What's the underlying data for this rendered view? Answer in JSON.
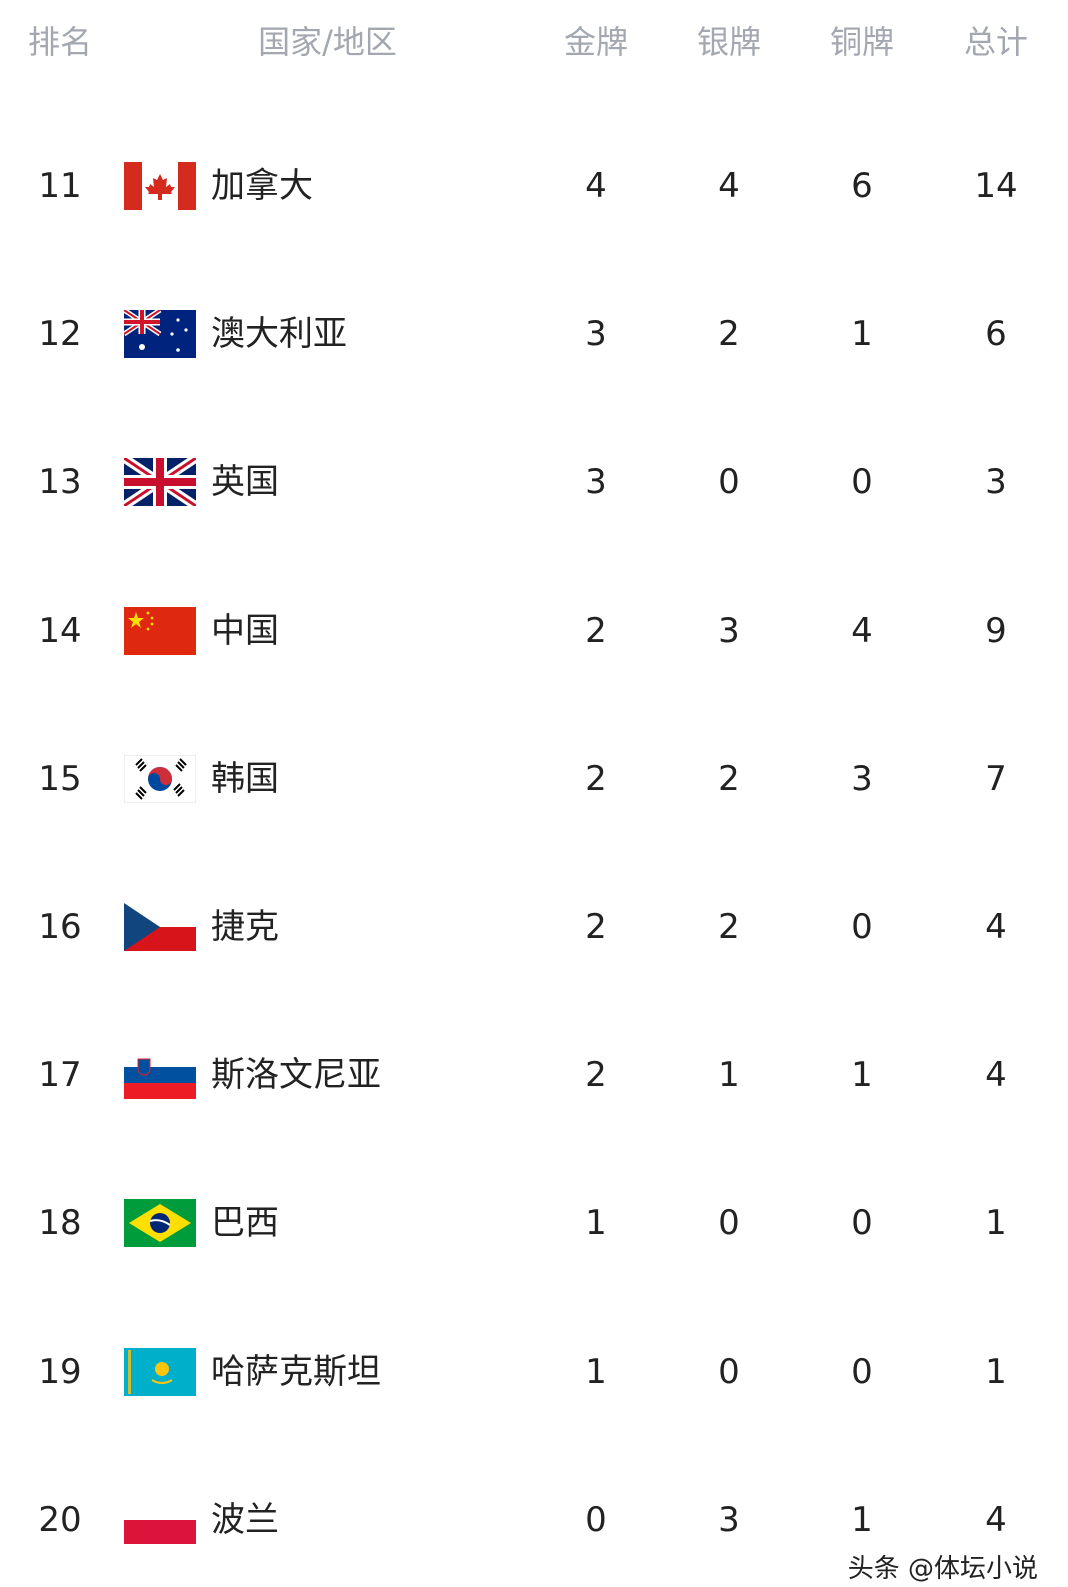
{
  "header": {
    "rank": "排名",
    "country": "国家/地区",
    "gold": "金牌",
    "silver": "银牌",
    "bronze": "铜牌",
    "total": "总计"
  },
  "rows": [
    {
      "rank": "11",
      "country": "加拿大",
      "flag": "canada",
      "gold": "4",
      "silver": "4",
      "bronze": "6",
      "total": "14"
    },
    {
      "rank": "12",
      "country": "澳大利亚",
      "flag": "australia",
      "gold": "3",
      "silver": "2",
      "bronze": "1",
      "total": "6"
    },
    {
      "rank": "13",
      "country": "英国",
      "flag": "uk",
      "gold": "3",
      "silver": "0",
      "bronze": "0",
      "total": "3"
    },
    {
      "rank": "14",
      "country": "中国",
      "flag": "china",
      "gold": "2",
      "silver": "3",
      "bronze": "4",
      "total": "9"
    },
    {
      "rank": "15",
      "country": "韩国",
      "flag": "korea",
      "gold": "2",
      "silver": "2",
      "bronze": "3",
      "total": "7"
    },
    {
      "rank": "16",
      "country": "捷克",
      "flag": "czech",
      "gold": "2",
      "silver": "2",
      "bronze": "0",
      "total": "4"
    },
    {
      "rank": "17",
      "country": "斯洛文尼亚",
      "flag": "slovenia",
      "gold": "2",
      "silver": "1",
      "bronze": "1",
      "total": "4"
    },
    {
      "rank": "18",
      "country": "巴西",
      "flag": "brazil",
      "gold": "1",
      "silver": "0",
      "bronze": "0",
      "total": "1"
    },
    {
      "rank": "19",
      "country": "哈萨克斯坦",
      "flag": "kazakhstan",
      "gold": "1",
      "silver": "0",
      "bronze": "0",
      "total": "1"
    },
    {
      "rank": "20",
      "country": "波兰",
      "flag": "poland",
      "gold": "0",
      "silver": "3",
      "bronze": "1",
      "total": "4"
    }
  ],
  "watermark": "头条 @体坛小说"
}
